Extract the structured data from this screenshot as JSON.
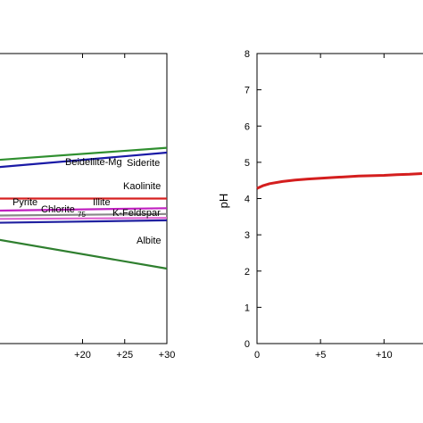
{
  "chart_data": [
    {
      "type": "line",
      "title": "",
      "xlabel": "",
      "ylabel": "",
      "xlim": [
        10,
        30
      ],
      "x_ticks": [
        "+20",
        "+25",
        "+30"
      ],
      "grid": false,
      "series": [
        {
          "name": "Siderite",
          "color": "#1a1aa6",
          "x": [
            10,
            30
          ],
          "y": [
            -2.35,
            -2.05
          ]
        },
        {
          "name": "Beidellite-Mg",
          "color": "#2f8f2f",
          "x": [
            10,
            30
          ],
          "y": [
            -2.2,
            -1.95
          ]
        },
        {
          "name": "Kaolinite",
          "color": "#d62020",
          "x": [
            10,
            30
          ],
          "y": [
            -3.0,
            -3.0
          ]
        },
        {
          "name": "Pyrite",
          "color": "#c020c0",
          "x": [
            10,
            30
          ],
          "y": [
            -3.25,
            -3.2
          ]
        },
        {
          "name": "Chlorite75",
          "color": "#e060d0",
          "x": [
            10,
            30
          ],
          "y": [
            -3.42,
            -3.4
          ]
        },
        {
          "name": "Illite",
          "color": "#888888",
          "x": [
            10,
            30
          ],
          "y": [
            -3.35,
            -3.32
          ]
        },
        {
          "name": "K-Feldspar",
          "color": "#2020a0",
          "x": [
            10,
            30
          ],
          "y": [
            -3.5,
            -3.45
          ]
        },
        {
          "name": "Albite",
          "color": "#2f7f2f",
          "x": [
            10,
            30
          ],
          "y": [
            -3.85,
            -4.45
          ]
        }
      ],
      "labels": [
        {
          "text": "Beidellite-Mg"
        },
        {
          "text": "Siderite"
        },
        {
          "text": "Kaolinite"
        },
        {
          "text": "Pyrite"
        },
        {
          "text": "Illite"
        },
        {
          "text": "Chlorite"
        },
        {
          "text": "75"
        },
        {
          "text": "K-Feldspar"
        },
        {
          "text": "Albite"
        }
      ]
    },
    {
      "type": "line",
      "title": "",
      "xlabel": "",
      "ylabel": "pH",
      "ylim": [
        0,
        8
      ],
      "y_ticks": [
        "0",
        "1",
        "2",
        "3",
        "4",
        "5",
        "6",
        "7",
        "8"
      ],
      "x_ticks": [
        "0",
        "+5",
        "+10"
      ],
      "xlim": [
        0,
        13
      ],
      "grid": false,
      "series": [
        {
          "name": "",
          "color": "#d41e1e",
          "x": [
            0,
            0.5,
            1,
            2,
            3,
            4,
            5,
            6,
            7,
            8,
            9,
            10,
            11,
            12,
            13
          ],
          "y": [
            4.28,
            4.36,
            4.41,
            4.47,
            4.51,
            4.54,
            4.56,
            4.58,
            4.6,
            4.62,
            4.63,
            4.64,
            4.66,
            4.67,
            4.69
          ]
        }
      ]
    }
  ]
}
